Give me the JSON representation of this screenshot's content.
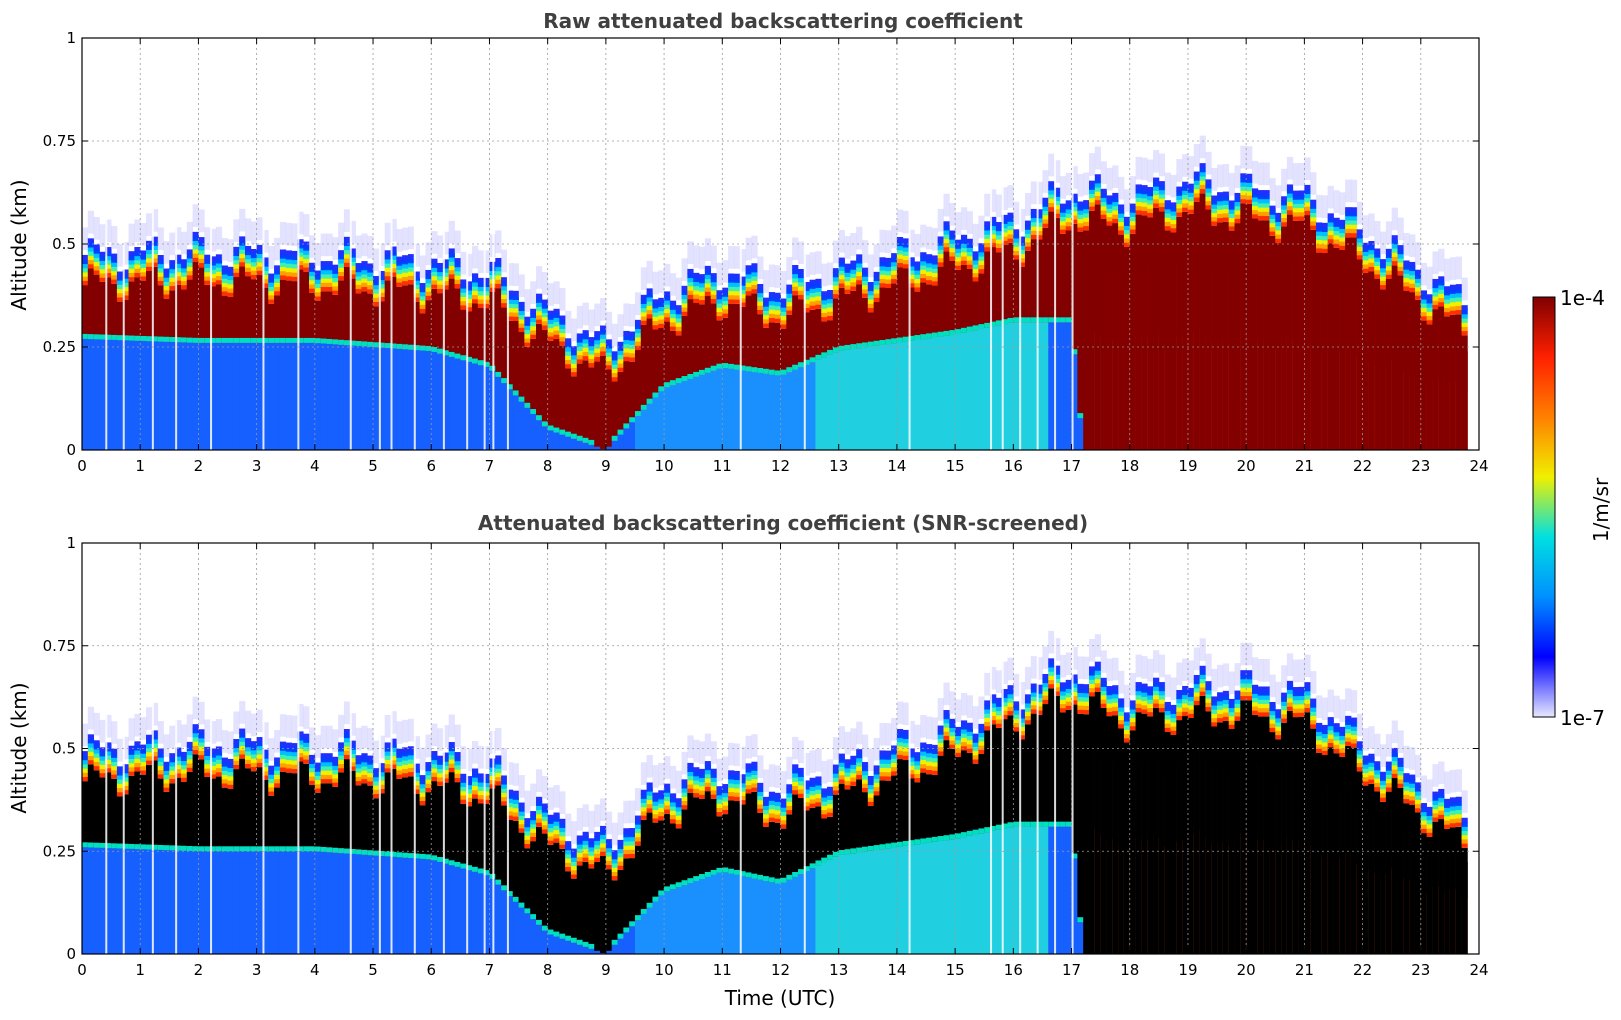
{
  "chart_data": [
    {
      "type": "heatmap",
      "title": "Raw attenuated backscattering coefficient",
      "xlabel": "",
      "ylabel": "Altitude (km)",
      "xlim": [
        0,
        24
      ],
      "ylim": [
        0,
        1
      ],
      "xticks": [
        "0",
        "1",
        "2",
        "3",
        "4",
        "5",
        "6",
        "7",
        "8",
        "9",
        "10",
        "11",
        "12",
        "13",
        "14",
        "15",
        "16",
        "17",
        "18",
        "19",
        "20",
        "21",
        "22",
        "23",
        "24"
      ],
      "yticks": [
        "0",
        "0.25",
        "0.5",
        "0.75",
        "1"
      ],
      "grid": true,
      "layer_top_km": [
        [
          0,
          0.44
        ],
        [
          2,
          0.45
        ],
        [
          4,
          0.44
        ],
        [
          6,
          0.42
        ],
        [
          7,
          0.4
        ],
        [
          8,
          0.3
        ],
        [
          9,
          0.22
        ],
        [
          10,
          0.35
        ],
        [
          11,
          0.4
        ],
        [
          12,
          0.36
        ],
        [
          13,
          0.4
        ],
        [
          14,
          0.44
        ],
        [
          15,
          0.48
        ],
        [
          16,
          0.52
        ],
        [
          17,
          0.6
        ],
        [
          18,
          0.58
        ],
        [
          19,
          0.62
        ],
        [
          20,
          0.6
        ],
        [
          21,
          0.58
        ],
        [
          22,
          0.5
        ],
        [
          23,
          0.4
        ],
        [
          23.8,
          0.32
        ]
      ],
      "layer_base_km": [
        [
          0,
          0.27
        ],
        [
          2,
          0.26
        ],
        [
          4,
          0.26
        ],
        [
          6,
          0.24
        ],
        [
          7,
          0.2
        ],
        [
          8,
          0.05
        ],
        [
          9,
          0.0
        ],
        [
          10,
          0.15
        ],
        [
          11,
          0.2
        ],
        [
          12,
          0.18
        ],
        [
          13,
          0.24
        ],
        [
          14,
          0.26
        ],
        [
          15,
          0.28
        ],
        [
          16,
          0.31
        ],
        [
          17,
          0.31
        ],
        [
          17.2,
          0.0
        ],
        [
          23.8,
          0.0
        ]
      ],
      "colorscale": "jet",
      "colorbar_range": [
        "1e-7",
        "1e-4"
      ],
      "colorbar_label": "1/m/sr"
    },
    {
      "type": "heatmap",
      "title": "Attenuated backscattering coefficient (SNR-screened)",
      "xlabel": "Time (UTC)",
      "ylabel": "Altitude (km)",
      "xlim": [
        0,
        24
      ],
      "ylim": [
        0,
        1
      ],
      "xticks": [
        "0",
        "1",
        "2",
        "3",
        "4",
        "5",
        "6",
        "7",
        "8",
        "9",
        "10",
        "11",
        "12",
        "13",
        "14",
        "15",
        "16",
        "17",
        "18",
        "19",
        "20",
        "21",
        "22",
        "23",
        "24"
      ],
      "yticks": [
        "0",
        "0.25",
        "0.5",
        "0.75",
        "1"
      ],
      "grid": true,
      "layer_top_km": [
        [
          0,
          0.46
        ],
        [
          2,
          0.48
        ],
        [
          4,
          0.47
        ],
        [
          6,
          0.45
        ],
        [
          7,
          0.42
        ],
        [
          8,
          0.3
        ],
        [
          9,
          0.23
        ],
        [
          10,
          0.38
        ],
        [
          11,
          0.42
        ],
        [
          12,
          0.37
        ],
        [
          13,
          0.42
        ],
        [
          14,
          0.47
        ],
        [
          15,
          0.52
        ],
        [
          16,
          0.6
        ],
        [
          17,
          0.66
        ],
        [
          18,
          0.6
        ],
        [
          19,
          0.62
        ],
        [
          20,
          0.62
        ],
        [
          21,
          0.6
        ],
        [
          22,
          0.48
        ],
        [
          23,
          0.38
        ],
        [
          23.8,
          0.3
        ]
      ],
      "layer_base_km": [
        [
          0,
          0.26
        ],
        [
          2,
          0.25
        ],
        [
          4,
          0.25
        ],
        [
          6,
          0.23
        ],
        [
          7,
          0.19
        ],
        [
          8,
          0.05
        ],
        [
          9,
          0.0
        ],
        [
          10,
          0.15
        ],
        [
          11,
          0.2
        ],
        [
          12,
          0.17
        ],
        [
          13,
          0.24
        ],
        [
          14,
          0.26
        ],
        [
          15,
          0.28
        ],
        [
          16,
          0.31
        ],
        [
          17,
          0.31
        ],
        [
          17.2,
          0.0
        ],
        [
          23.8,
          0.0
        ]
      ],
      "colorscale": "jet",
      "colorbar_range": [
        "1e-7",
        "1e-4"
      ],
      "colorbar_label": "1/m/sr"
    }
  ],
  "colorbar": {
    "top_label": "1e-4",
    "bottom_label": "1e-7",
    "unit_label": "1/m/sr",
    "stops": [
      "#e8e8ff",
      "#0000ff",
      "#0090ff",
      "#00e0e0",
      "#f0f000",
      "#ff8000",
      "#ff2000",
      "#800000"
    ]
  }
}
